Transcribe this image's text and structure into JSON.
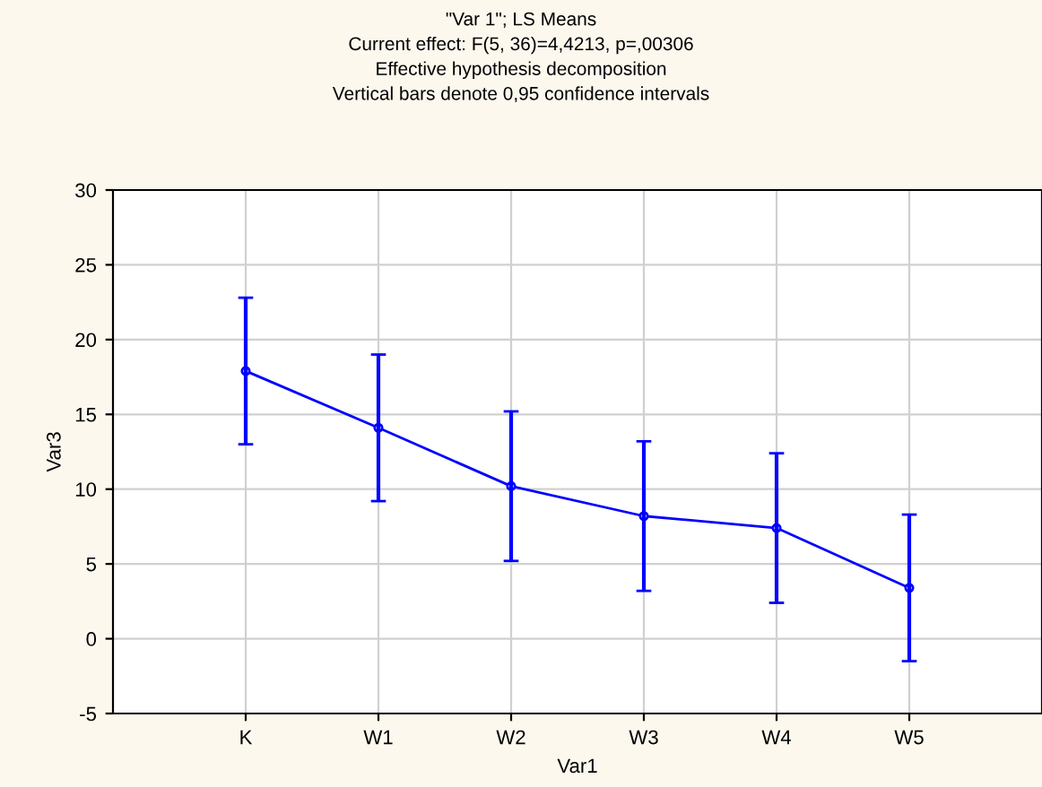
{
  "chart_data": {
    "type": "line",
    "title": "\"Var 1\"; LS Means\nCurrent effect: F(5, 36)=4,4213, p=,00306\nEffective hypothesis decomposition\nVertical bars denote 0,95 confidence intervals",
    "xlabel": "Var1",
    "ylabel": "Var3",
    "categories": [
      "K",
      "W1",
      "W2",
      "W3",
      "W4",
      "W5"
    ],
    "series": [
      {
        "color": "#0000ff",
        "values": [
          17.9,
          14.1,
          10.2,
          8.2,
          7.4,
          3.4
        ],
        "errors": [
          4.9,
          4.9,
          5.0,
          5.0,
          5.0,
          4.9
        ]
      }
    ],
    "ylim": [
      -5,
      30
    ],
    "yticks": [
      -5,
      0,
      5,
      10,
      15,
      20,
      25,
      30
    ],
    "grid": true,
    "marker": "circle",
    "line_style": "solid"
  }
}
